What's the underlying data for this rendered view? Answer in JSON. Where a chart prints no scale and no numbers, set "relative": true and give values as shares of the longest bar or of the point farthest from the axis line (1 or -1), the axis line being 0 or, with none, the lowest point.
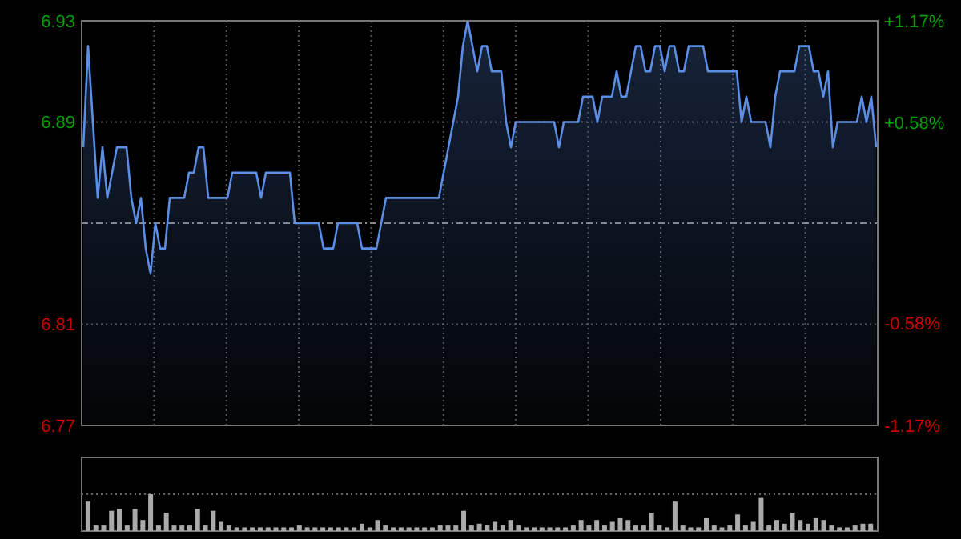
{
  "chart_data": [
    {
      "type": "area",
      "categories": [
        null,
        null,
        null,
        null,
        null,
        null,
        null,
        null,
        null,
        null,
        null,
        null,
        null,
        null,
        null,
        null,
        null,
        null,
        null,
        null,
        null,
        null,
        null,
        null,
        null,
        null,
        null,
        null,
        null,
        null,
        null,
        null,
        null,
        null,
        null,
        null,
        null,
        null,
        null,
        null,
        null,
        null,
        null,
        null,
        null,
        null,
        null,
        null,
        null,
        null,
        null,
        null,
        null,
        null,
        null,
        null,
        null,
        null,
        null,
        null,
        null,
        null,
        null,
        null,
        null,
        null,
        null,
        null,
        null,
        null,
        null,
        null,
        null,
        null,
        null,
        null,
        null,
        null,
        null,
        null,
        null,
        null,
        null,
        null,
        null,
        null,
        null,
        null,
        null,
        null,
        null,
        null,
        null,
        null,
        null,
        null,
        null,
        null,
        null,
        null,
        null,
        null,
        null,
        null,
        null,
        null,
        null,
        null,
        null,
        null,
        null,
        null,
        null,
        null,
        null,
        null,
        null,
        null,
        null,
        null,
        null,
        null,
        null,
        null,
        null,
        null,
        null,
        null,
        null,
        null,
        null,
        null,
        null,
        null,
        null,
        null,
        null,
        null,
        null,
        null,
        null,
        null,
        null,
        null,
        null,
        null,
        null,
        null,
        null,
        null,
        null,
        null,
        null,
        null,
        null,
        null,
        null,
        null,
        null,
        null,
        null,
        null,
        null,
        null,
        null,
        null
      ],
      "series": [
        {
          "color": "#5b8ee6",
          "values": [
            6.88,
            6.92,
            6.89,
            6.86,
            6.88,
            6.86,
            6.87,
            6.88,
            6.88,
            6.88,
            6.86,
            6.85,
            6.86,
            6.84,
            6.83,
            6.85,
            6.84,
            6.84,
            6.86,
            6.86,
            6.86,
            6.86,
            6.87,
            6.87,
            6.88,
            6.88,
            6.86,
            6.86,
            6.86,
            6.86,
            6.86,
            6.87,
            6.87,
            6.87,
            6.87,
            6.87,
            6.87,
            6.86,
            6.87,
            6.87,
            6.87,
            6.87,
            6.87,
            6.87,
            6.85,
            6.85,
            6.85,
            6.85,
            6.85,
            6.85,
            6.84,
            6.84,
            6.84,
            6.85,
            6.85,
            6.85,
            6.85,
            6.85,
            6.84,
            6.84,
            6.84,
            6.84,
            6.85,
            6.86,
            6.86,
            6.86,
            6.86,
            6.86,
            6.86,
            6.86,
            6.86,
            6.86,
            6.86,
            6.86,
            6.86,
            6.87,
            6.88,
            6.89,
            6.9,
            6.92,
            6.93,
            6.92,
            6.91,
            6.92,
            6.92,
            6.91,
            6.91,
            6.91,
            6.89,
            6.88,
            6.89,
            6.89,
            6.89,
            6.89,
            6.89,
            6.89,
            6.89,
            6.89,
            6.89,
            6.88,
            6.89,
            6.89,
            6.89,
            6.89,
            6.9,
            6.9,
            6.9,
            6.89,
            6.9,
            6.9,
            6.9,
            6.91,
            6.9,
            6.9,
            6.91,
            6.92,
            6.92,
            6.91,
            6.91,
            6.92,
            6.92,
            6.91,
            6.92,
            6.92,
            6.91,
            6.91,
            6.92,
            6.92,
            6.92,
            6.92,
            6.91,
            6.91,
            6.91,
            6.91,
            6.91,
            6.91,
            6.91,
            6.89,
            6.9,
            6.89,
            6.89,
            6.89,
            6.89,
            6.88,
            6.9,
            6.91,
            6.91,
            6.91,
            6.91,
            6.92,
            6.92,
            6.92,
            6.91,
            6.91,
            6.9,
            6.91,
            6.88,
            6.89,
            6.89,
            6.89,
            6.89,
            6.89,
            6.9,
            6.89,
            6.9,
            6.88
          ]
        }
      ],
      "ylim": [
        6.77,
        6.93
      ],
      "yticks": [
        6.77,
        6.81,
        6.89,
        6.93
      ],
      "y2lim": [
        -1.17,
        1.17
      ],
      "y2ticks": [
        {
          "value": -1.17,
          "label": "-1.17%"
        },
        {
          "value": -0.58,
          "label": "-0.58%"
        },
        {
          "value": 0.58,
          "label": "+0.58%"
        },
        {
          "value": 1.17,
          "label": "+1.17%"
        }
      ],
      "ref_lines": [
        {
          "axis": "y",
          "value": 6.85,
          "line_style": "dashed"
        }
      ],
      "grid": true,
      "tick_labels": "y"
    },
    {
      "type": "bar",
      "relative": true,
      "grid": true,
      "categories": [
        null,
        null,
        null,
        null,
        null,
        null,
        null,
        null,
        null,
        null,
        null,
        null,
        null,
        null,
        null,
        null,
        null,
        null,
        null,
        null,
        null,
        null,
        null,
        null,
        null,
        null,
        null,
        null,
        null,
        null,
        null,
        null,
        null,
        null,
        null,
        null,
        null,
        null,
        null,
        null,
        null,
        null,
        null,
        null,
        null,
        null,
        null,
        null,
        null,
        null,
        null,
        null,
        null,
        null,
        null,
        null,
        null,
        null,
        null,
        null,
        null,
        null,
        null,
        null,
        null,
        null,
        null,
        null,
        null,
        null,
        null,
        null,
        null,
        null,
        null,
        null,
        null,
        null,
        null,
        null,
        null,
        null,
        null,
        null,
        null,
        null,
        null,
        null,
        null,
        null,
        null,
        null,
        null,
        null,
        null,
        null,
        null,
        null,
        null,
        null,
        null
      ],
      "series": [
        {
          "color": "#aaaaaa",
          "values": [
            0.8,
            0.15,
            0.15,
            0.55,
            0.6,
            0.15,
            0.6,
            0.3,
            1,
            0.15,
            0.5,
            0.15,
            0.15,
            0.15,
            0.6,
            0.15,
            0.55,
            0.25,
            0.15,
            0.1,
            0.1,
            0.1,
            0.1,
            0.1,
            0.1,
            0.1,
            0.1,
            0.15,
            0.1,
            0.1,
            0.1,
            0.1,
            0.1,
            0.1,
            0.1,
            0.2,
            0.1,
            0.3,
            0.15,
            0.1,
            0.1,
            0.1,
            0.1,
            0.1,
            0.1,
            0.15,
            0.15,
            0.15,
            0.55,
            0.15,
            0.2,
            0.15,
            0.25,
            0.15,
            0.3,
            0.15,
            0.1,
            0.1,
            0.1,
            0.1,
            0.1,
            0.1,
            0.15,
            0.3,
            0.15,
            0.3,
            0.15,
            0.25,
            0.35,
            0.3,
            0.15,
            0.15,
            0.5,
            0.15,
            0.1,
            0.8,
            0.15,
            0.1,
            0.1,
            0.35,
            0.15,
            0.1,
            0.15,
            0.45,
            0.15,
            0.25,
            0.9,
            0.15,
            0.3,
            0.2,
            0.5,
            0.3,
            0.2,
            0.35,
            0.3,
            0.15,
            0.1,
            0.1,
            0.15,
            0.2,
            0.2
          ]
        }
      ]
    }
  ]
}
